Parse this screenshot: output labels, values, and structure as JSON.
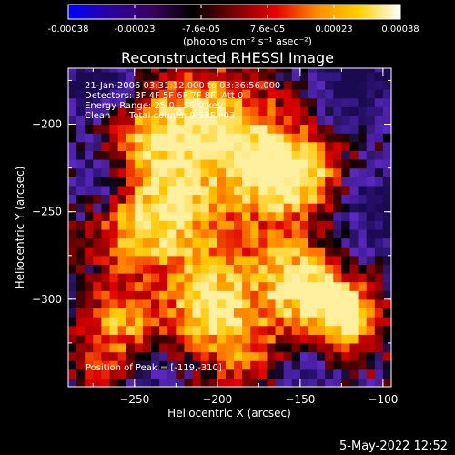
{
  "colorbar": {
    "ticks": [
      "-0.00038",
      "-0.00023",
      "-7.6e-05",
      "7.6e-05",
      "0.00023",
      "0.00038"
    ],
    "unit": "(photons cm⁻² s⁻¹ asec⁻²)",
    "colors": [
      "#0000ff",
      "#2b00a0",
      "#3a0060",
      "#000000",
      "#7a0000",
      "#e60000",
      "#ff8c00",
      "#ffd000",
      "#ffffff"
    ]
  },
  "annotations": {
    "time_range": "21-Jan-2006 03:31:12.000 to 03:36:56.000",
    "detectors": "Detectors: 3F 4F 5F 6F 7F 8F, Att 0",
    "energy": "Energy Range: 25.0 - 50.0 keV",
    "method": "Clean",
    "counts": "Total counts: 9.58E+03",
    "peak": "Position of Peak = [-119,-310]"
  },
  "footer": {
    "date": "5-May-2022 12:52"
  },
  "chart_data": {
    "type": "heatmap",
    "title": "Reconstructed RHESSI Image",
    "xlabel": "Heliocentric X (arcsec)",
    "ylabel": "Heliocentric Y (arcsec)",
    "xlim": [
      -290,
      -95
    ],
    "ylim": [
      -350,
      -168
    ],
    "xticks": [
      -250,
      -200,
      -150,
      -100
    ],
    "xtick_labels": [
      "−250",
      "−200",
      "−150",
      "−100"
    ],
    "yticks": [
      -200,
      -250,
      -300
    ],
    "ytick_labels": [
      "−200",
      "−250",
      "−300"
    ],
    "value_range": [
      -0.00038,
      0.00038
    ],
    "peak": [
      -119,
      -310
    ],
    "cmap": [
      "#1a0a50",
      "#3a1a90",
      "#5a28c0",
      "#000000",
      "#8a0000",
      "#e00000",
      "#ff7800",
      "#ffc800",
      "#fff0a0"
    ],
    "grid_step": 5,
    "blobs": [
      {
        "x": -245,
        "y": -210,
        "amp": 0.8,
        "s": 20
      },
      {
        "x": -205,
        "y": -200,
        "amp": 1.0,
        "s": 22
      },
      {
        "x": -170,
        "y": -225,
        "amp": 1.0,
        "s": 20
      },
      {
        "x": -145,
        "y": -230,
        "amp": 0.7,
        "s": 16
      },
      {
        "x": -250,
        "y": -260,
        "amp": 0.8,
        "s": 16
      },
      {
        "x": -215,
        "y": -265,
        "amp": 0.6,
        "s": 20
      },
      {
        "x": -160,
        "y": -285,
        "amp": 0.8,
        "s": 18
      },
      {
        "x": -205,
        "y": -305,
        "amp": 1.0,
        "s": 18
      },
      {
        "x": -255,
        "y": -310,
        "amp": 0.7,
        "s": 14
      },
      {
        "x": -140,
        "y": -300,
        "amp": 0.9,
        "s": 14
      },
      {
        "x": -119,
        "y": -310,
        "amp": 1.1,
        "s": 12
      },
      {
        "x": -265,
        "y": -335,
        "amp": 0.6,
        "s": 14
      },
      {
        "x": -180,
        "y": -330,
        "amp": 0.5,
        "s": 16
      },
      {
        "x": -225,
        "y": -240,
        "amp": 0.5,
        "s": 14
      },
      {
        "x": -115,
        "y": -175,
        "amp": -1.0,
        "s": 18
      },
      {
        "x": -275,
        "y": -175,
        "amp": -0.9,
        "s": 18
      },
      {
        "x": -270,
        "y": -230,
        "amp": -0.6,
        "s": 14
      },
      {
        "x": -105,
        "y": -250,
        "amp": -0.8,
        "s": 18
      },
      {
        "x": -245,
        "y": -345,
        "amp": -0.6,
        "s": 16
      },
      {
        "x": -150,
        "y": -345,
        "amp": -0.5,
        "s": 14
      }
    ]
  }
}
